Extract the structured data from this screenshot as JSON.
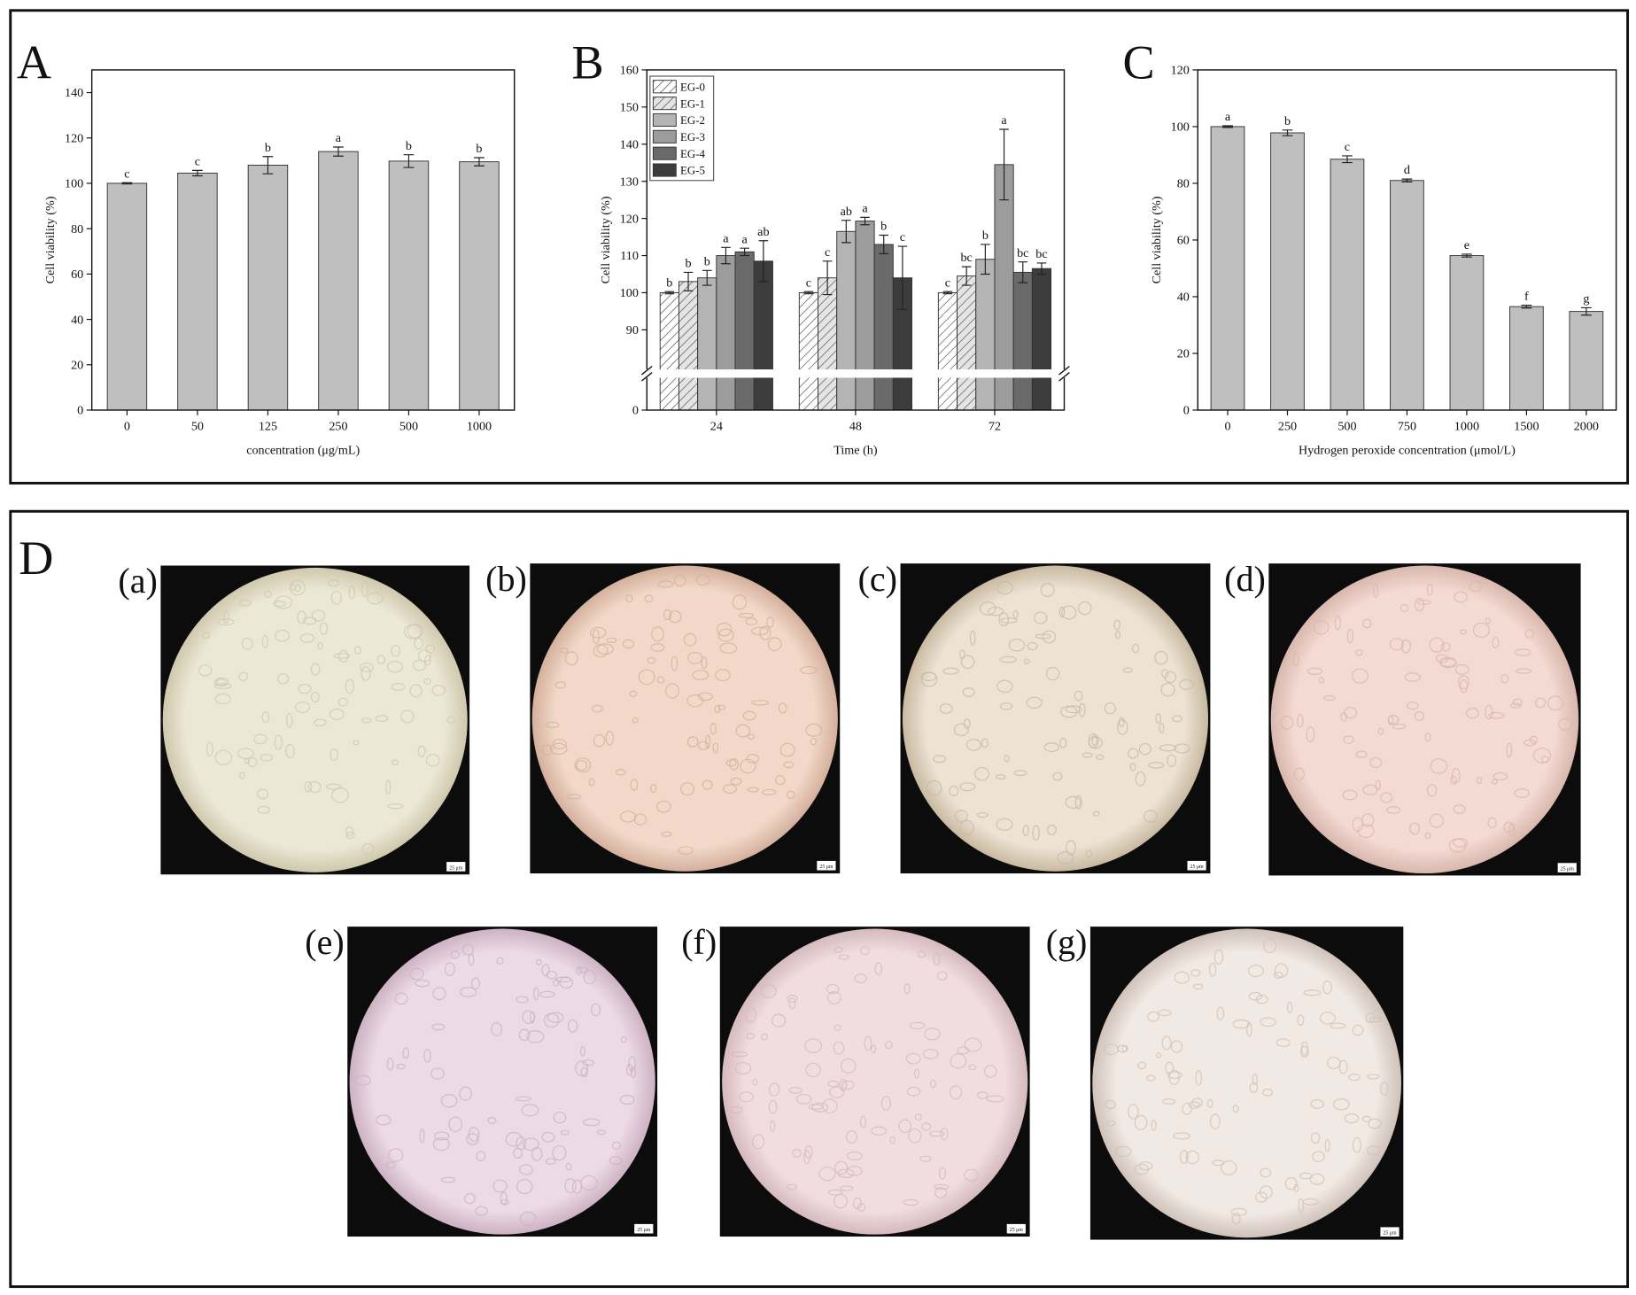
{
  "chart_data": [
    {
      "type": "bar",
      "panel": "A",
      "categories": [
        "0",
        "50",
        "125",
        "250",
        "500",
        "1000"
      ],
      "values": [
        100,
        104.5,
        108,
        114,
        109.8,
        109.5
      ],
      "errors": [
        0.3,
        1.2,
        3.8,
        2,
        2.8,
        1.8
      ],
      "annotations": [
        "c",
        "c",
        "b",
        "a",
        "b",
        "b"
      ],
      "color": "#bfbfbf",
      "xlabel": "concentration (μg/mL)",
      "ylabel": "Cell viability (%)",
      "ylim": [
        0,
        150
      ],
      "yticks": [
        0,
        20,
        40,
        60,
        80,
        100,
        120,
        140
      ]
    },
    {
      "type": "grouped_bar",
      "panel": "B",
      "categories": [
        "24",
        "48",
        "72"
      ],
      "series": [
        {
          "name": "EG-0",
          "color": "#ffffff",
          "pattern": "hatch",
          "values": [
            100,
            100,
            100
          ],
          "errors": [
            0.3,
            0.3,
            0.3
          ],
          "annotations": [
            "b",
            "c",
            "c"
          ]
        },
        {
          "name": "EG-1",
          "color": "#e4e4e4",
          "pattern": "hatch",
          "values": [
            103,
            104,
            104.5
          ],
          "errors": [
            2.5,
            4.5,
            2.5
          ],
          "annotations": [
            "b",
            "c",
            "bc"
          ]
        },
        {
          "name": "EG-2",
          "color": "#b4b4b4",
          "values": [
            104,
            116.5,
            109
          ],
          "errors": [
            2,
            3,
            4
          ],
          "annotations": [
            "b",
            "ab",
            "b"
          ]
        },
        {
          "name": "EG-3",
          "color": "#9c9c9c",
          "values": [
            110,
            119.3,
            134.5
          ],
          "errors": [
            2.2,
            1,
            9.5
          ],
          "annotations": [
            "a",
            "a",
            "a"
          ]
        },
        {
          "name": "EG-4",
          "color": "#6a6a6a",
          "values": [
            111,
            113,
            105.5
          ],
          "errors": [
            1,
            2.5,
            2.8
          ],
          "annotations": [
            "a",
            "b",
            "bc"
          ]
        },
        {
          "name": "EG-5",
          "color": "#3c3c3c",
          "values": [
            108.5,
            104,
            106.5
          ],
          "errors": [
            5.5,
            8.5,
            1.5
          ],
          "annotations": [
            "ab",
            "c",
            "bc"
          ]
        }
      ],
      "xlabel": "Time (h)",
      "ylabel": "Cell viability (%)",
      "ylim": [
        0,
        160
      ],
      "ybreak": [
        5,
        83
      ],
      "yticks": [
        0,
        90,
        100,
        110,
        120,
        130,
        140,
        150,
        160
      ],
      "legend": "upper left"
    },
    {
      "type": "bar",
      "panel": "C",
      "categories": [
        "0",
        "250",
        "500",
        "750",
        "1000",
        "1500",
        "2000"
      ],
      "values": [
        100,
        97.8,
        88.5,
        81,
        54.5,
        36.5,
        34.8
      ],
      "errors": [
        0.3,
        1,
        1.2,
        0.5,
        0.5,
        0.5,
        1.3
      ],
      "annotations": [
        "a",
        "b",
        "c",
        "d",
        "e",
        "f",
        "g"
      ],
      "color": "#bfbfbf",
      "xlabel": "Hydrogen peroxide concentration (μmol/L)",
      "ylabel": "Cell viability (%)",
      "ylim": [
        0,
        120
      ],
      "yticks": [
        0,
        20,
        40,
        60,
        80,
        100,
        120
      ]
    }
  ],
  "panel_d": {
    "panel": "D",
    "images": [
      {
        "label": "(a)",
        "scale_bar": "25 μm"
      },
      {
        "label": "(b)",
        "scale_bar": "25 μm"
      },
      {
        "label": "(c)",
        "scale_bar": "25 μm"
      },
      {
        "label": "(d)",
        "scale_bar": "25 μm"
      },
      {
        "label": "(e)",
        "scale_bar": "25 μm"
      },
      {
        "label": "(f)",
        "scale_bar": "25 μm"
      },
      {
        "label": "(g)",
        "scale_bar": "25 μm"
      }
    ]
  }
}
